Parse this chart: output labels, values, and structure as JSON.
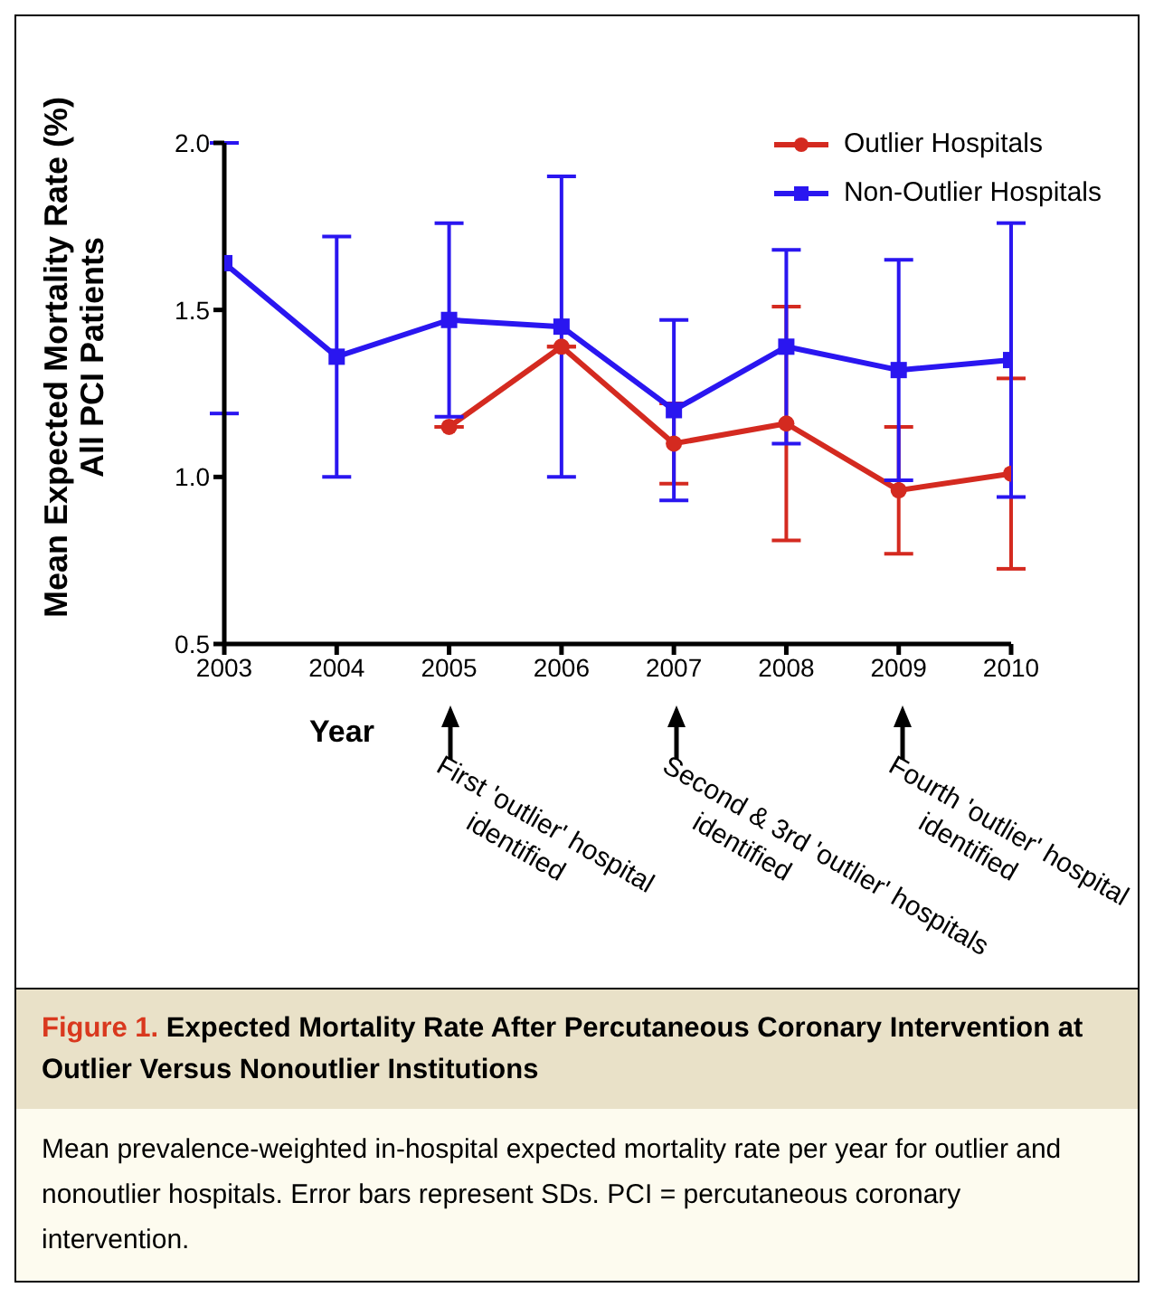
{
  "chart_data": {
    "type": "line",
    "title": "Figure 1. Expected Mortality Rate After Percutaneous Coronary Intervention at Outlier Versus Nonoutlier Institutions",
    "xlabel": "Year",
    "ylabel": "Mean Expected Mortality Rate (%)\nAll PCI Patients",
    "x": [
      2003,
      2004,
      2005,
      2006,
      2007,
      2008,
      2009,
      2010
    ],
    "series": [
      {
        "name": "Outlier Hospitals",
        "color": "#d42a20",
        "marker": "circle",
        "values": [
          null,
          null,
          1.15,
          1.39,
          1.1,
          1.16,
          0.96,
          1.01
        ],
        "errors": [
          null,
          null,
          null,
          null,
          0.12,
          0.35,
          0.19,
          0.285
        ]
      },
      {
        "name": "Non-Outlier Hospitals",
        "color": "#2a16f0",
        "marker": "square",
        "values": [
          1.64,
          1.36,
          1.47,
          1.45,
          1.2,
          1.39,
          1.32,
          1.35
        ],
        "errors": [
          [
            1.19,
            2.0
          ],
          0.36,
          0.29,
          0.45,
          0.27,
          0.29,
          0.33,
          0.41
        ]
      }
    ],
    "xlim": [
      2003,
      2010
    ],
    "xticks": [
      2003,
      2004,
      2005,
      2006,
      2007,
      2008,
      2009,
      2010
    ],
    "ylim": [
      0.5,
      2.0
    ],
    "yticks": [
      0.5,
      {
        "value": 1,
        "label": "1.0"
      },
      1.5,
      {
        "value": 2,
        "label": "2.0"
      }
    ],
    "grid": false,
    "legend": "top right",
    "line_style": "solid",
    "annotations": [
      "First 'outlier' hospital\nidentified",
      "Second & 3rd 'outlier' hospitals\nidentified",
      "Fourth 'outlier' hospital\nidentified",
      "Mean prevalence-weighted in-hospital expected mortality rate per year for outlier and nonoutlier hospitals. Error bars represent SDs. PCI = percutaneous coronary intervention."
    ]
  }
}
